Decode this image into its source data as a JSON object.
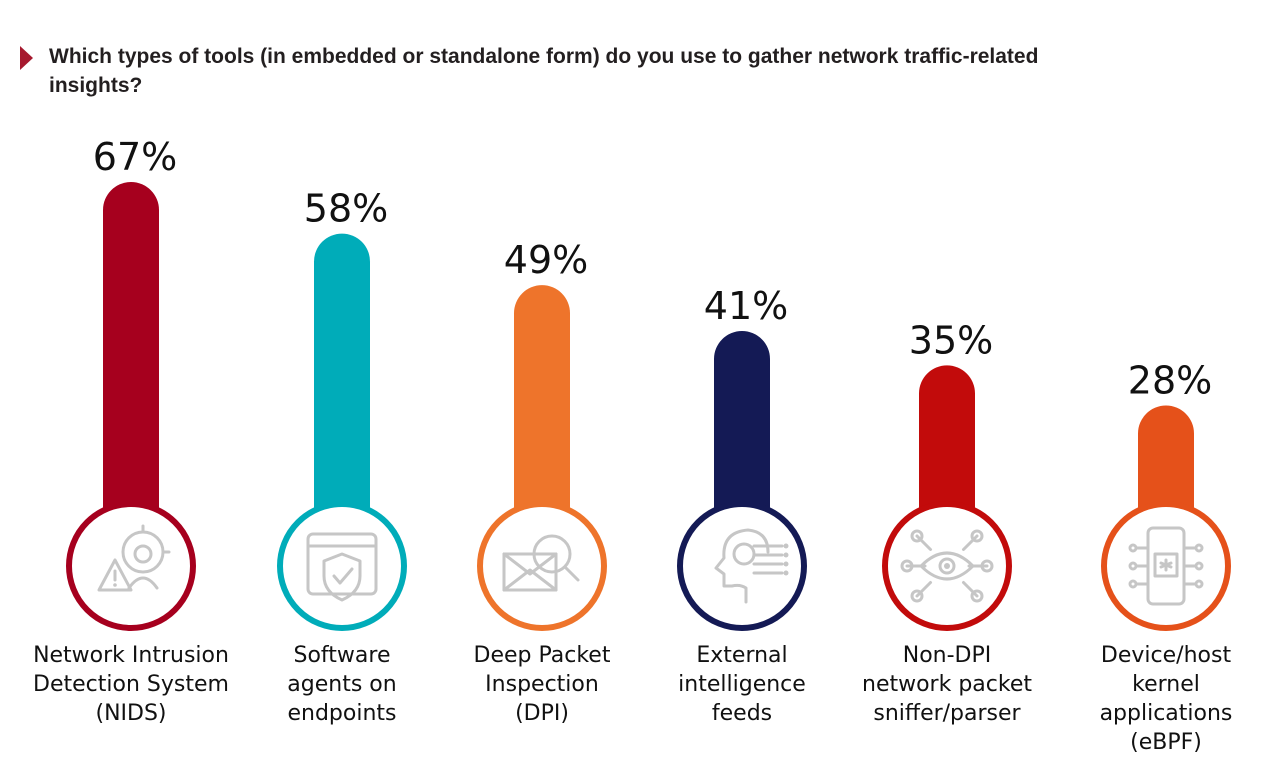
{
  "title": "Which types of tools (in embedded or standalone form) do you use to gather network traffic-related insights?",
  "colors": {
    "title_marker": "#a6192e",
    "icon_gray": "#c6c6c6"
  },
  "chart_data": {
    "type": "bar",
    "title": "Which types of tools (in embedded or standalone form) do you use to gather network traffic-related insights?",
    "unit": "%",
    "categories": [
      "Network Intrusion Detection System (NIDS)",
      "Software agents on endpoints",
      "Deep Packet Inspection (DPI)",
      "External intelligence feeds",
      "Non-DPI network packet sniffer/parser",
      "Device/host kernel applications (eBPF)"
    ],
    "category_lines": [
      [
        "Network Intrusion",
        "Detection System",
        "(NIDS)"
      ],
      [
        "Software",
        "agents on",
        "endpoints"
      ],
      [
        "Deep Packet",
        "Inspection",
        "(DPI)"
      ],
      [
        "External",
        "intelligence",
        "feeds"
      ],
      [
        "Non-DPI",
        "network packet",
        "sniffer/parser"
      ],
      [
        "Device/host",
        "kernel",
        "applications",
        "(eBPF)"
      ]
    ],
    "values": [
      67,
      58,
      49,
      41,
      35,
      28
    ],
    "value_labels": [
      "67%",
      "58%",
      "49%",
      "41%",
      "35%",
      "28%"
    ],
    "colors": [
      "#a6001e",
      "#00acb9",
      "#ee742b",
      "#141a55",
      "#c20b0b",
      "#e5511a"
    ],
    "icons": [
      "intrusion-warning-icon",
      "shield-check-icon",
      "envelope-search-icon",
      "head-circuit-icon",
      "eye-network-icon",
      "chip-mobile-icon"
    ],
    "ylim": [
      0,
      67
    ]
  }
}
